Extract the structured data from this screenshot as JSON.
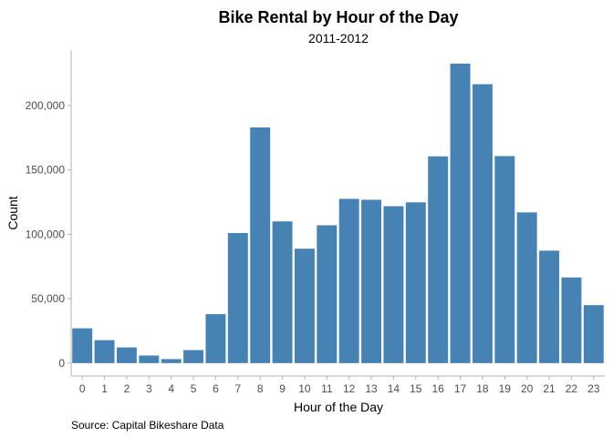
{
  "chart_data": {
    "type": "bar",
    "title": "Bike Rental by Hour of the Day",
    "subtitle": "2011-2012",
    "xlabel": "Hour of the Day",
    "ylabel": "Count",
    "caption": "Source: Capital Bikeshare Data",
    "categories": [
      "0",
      "1",
      "2",
      "3",
      "4",
      "5",
      "6",
      "7",
      "8",
      "9",
      "10",
      "11",
      "12",
      "13",
      "14",
      "15",
      "16",
      "17",
      "18",
      "19",
      "20",
      "21",
      "22",
      "23"
    ],
    "values": [
      27000,
      17800,
      12200,
      5900,
      3100,
      10100,
      38000,
      101000,
      183000,
      110000,
      88800,
      107000,
      127500,
      126800,
      121800,
      124800,
      160500,
      232500,
      216500,
      160700,
      117000,
      87300,
      66500,
      45000
    ],
    "ylim": [
      -10000,
      243000
    ],
    "yticks": [
      0,
      50000,
      100000,
      150000,
      200000
    ],
    "ytick_labels": [
      "0",
      "50,000",
      "100,000",
      "150,000",
      "200,000"
    ],
    "grid": false,
    "bar_color": "#4682B4"
  }
}
